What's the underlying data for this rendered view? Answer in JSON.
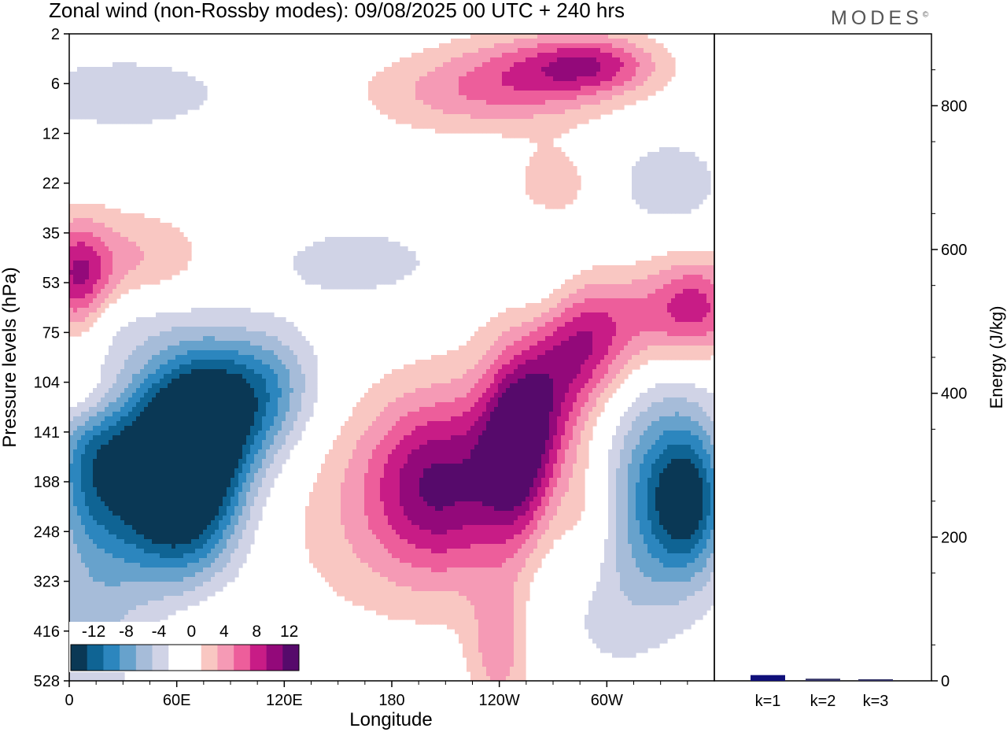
{
  "title": "Zonal wind (non-Rossby modes):  09/08/2025  00 UTC  + 240 hrs",
  "brand": "MODES",
  "brand_mark": "©",
  "colors": {
    "neg": [
      "#0a3855",
      "#0f6494",
      "#2c86be",
      "#67a2cc",
      "#a6bcd9",
      "#d0d3e6"
    ],
    "zero": "#ffffff",
    "pos": [
      "#f9c7c2",
      "#f59ab5",
      "#ed5e9b",
      "#c81c86",
      "#93097a",
      "#560a6b"
    ],
    "bar": "#10107a"
  },
  "chart_data": [
    {
      "type": "heatmap",
      "title": "Zonal wind (non-Rossby modes):  09/08/2025  00 UTC  + 240 hrs",
      "xlabel": "Longitude",
      "ylabel": "Pressure levels (hPa)",
      "x_ticks": [
        "0",
        "60E",
        "120E",
        "180",
        "120W",
        "60W"
      ],
      "y_ticks": [
        "2",
        "6",
        "12",
        "22",
        "35",
        "53",
        "75",
        "104",
        "141",
        "188",
        "248",
        "323",
        "416",
        "528"
      ],
      "colorbar": {
        "labels": [
          "-12",
          "-8",
          "-4",
          "0",
          "4",
          "8",
          "12"
        ],
        "levels": [
          -14,
          -12,
          -10,
          -8,
          -6,
          -4,
          -2,
          2,
          4,
          6,
          8,
          10,
          12,
          14
        ]
      },
      "features": [
        {
          "lon": 50,
          "level": 8.6,
          "lon_width": 22,
          "level_width": 1.3,
          "value": -12
        },
        {
          "lon": 72,
          "level": 8.5,
          "lon_width": 18,
          "level_width": 1.4,
          "value": -9
        },
        {
          "lon": 90,
          "level": 7.7,
          "lon_width": 24,
          "level_width": 1.0,
          "value": -8
        },
        {
          "lon": 12,
          "level": 8.6,
          "lon_width": 16,
          "level_width": 1.2,
          "value": -8
        },
        {
          "lon": 110,
          "level": 7.0,
          "lon_width": 22,
          "level_width": 0.8,
          "value": -5
        },
        {
          "lon": 60,
          "level": 10.0,
          "lon_width": 30,
          "level_width": 1.3,
          "value": -5
        },
        {
          "lon": 30,
          "level": 5.6,
          "lon_width": 30,
          "level_width": 0.6,
          "value": -3
        },
        {
          "lon": 160,
          "level": 4.6,
          "lon_width": 40,
          "level_width": 0.6,
          "value": -3
        },
        {
          "lon": 30,
          "level": 1.2,
          "lon_width": 40,
          "level_width": 0.5,
          "value": -4
        },
        {
          "lon": 330,
          "level": 9.0,
          "lon_width": 25,
          "level_width": 1.5,
          "value": -7
        },
        {
          "lon": 345,
          "level": 9.4,
          "lon_width": 14,
          "level_width": 1.0,
          "value": -9
        },
        {
          "lon": 335,
          "level": 3.0,
          "lon_width": 20,
          "level_width": 0.6,
          "value": -4
        },
        {
          "lon": 300,
          "level": 11.0,
          "lon_width": 30,
          "level_width": 1.5,
          "value": -3
        },
        {
          "lon": 265,
          "level": 5.4,
          "lon_width": 14,
          "level_width": 0.8,
          "value": -2.5
        },
        {
          "lon": 10,
          "level": 12.0,
          "lon_width": 20,
          "level_width": 1.5,
          "value": -4
        },
        {
          "lon": 5,
          "level": 5.0,
          "lon_width": 12,
          "level_width": 0.8,
          "value": 8
        },
        {
          "lon": 30,
          "level": 4.7,
          "lon_width": 35,
          "level_width": 0.8,
          "value": 5
        },
        {
          "lon": 10,
          "level": 7.3,
          "lon_width": 14,
          "level_width": 0.5,
          "value": 4
        },
        {
          "lon": 175,
          "level": 9.6,
          "lon_width": 50,
          "level_width": 1.6,
          "value": 3.5
        },
        {
          "lon": 200,
          "level": 9.0,
          "lon_width": 25,
          "level_width": 1.2,
          "value": 6
        },
        {
          "lon": 225,
          "level": 9.0,
          "lon_width": 30,
          "level_width": 1.4,
          "value": 5
        },
        {
          "lon": 250,
          "level": 8.5,
          "lon_width": 14,
          "level_width": 1.2,
          "value": 9
        },
        {
          "lon": 262,
          "level": 7.5,
          "lon_width": 20,
          "level_width": 1.0,
          "value": 7
        },
        {
          "lon": 285,
          "level": 6.4,
          "lon_width": 20,
          "level_width": 0.8,
          "value": 7
        },
        {
          "lon": 315,
          "level": 5.7,
          "lon_width": 40,
          "level_width": 0.7,
          "value": 5
        },
        {
          "lon": 350,
          "level": 5.4,
          "lon_width": 18,
          "level_width": 0.7,
          "value": 6
        },
        {
          "lon": 240,
          "level": 12.4,
          "lon_width": 12,
          "level_width": 1.0,
          "value": 5
        },
        {
          "lon": 290,
          "level": 9.8,
          "lon_width": 12,
          "level_width": 1.0,
          "value": 4
        },
        {
          "lon": 215,
          "level": 1.2,
          "lon_width": 40,
          "level_width": 0.6,
          "value": 4
        },
        {
          "lon": 265,
          "level": 0.8,
          "lon_width": 35,
          "level_width": 0.6,
          "value": 6
        },
        {
          "lon": 295,
          "level": 0.6,
          "lon_width": 25,
          "level_width": 0.4,
          "value": 6
        },
        {
          "lon": 270,
          "level": 3.0,
          "lon_width": 18,
          "level_width": 0.6,
          "value": 3
        },
        {
          "lon": 75,
          "level": 12.4,
          "lon_width": 20,
          "level_width": 1.5,
          "value": 2.5
        }
      ]
    },
    {
      "type": "bar",
      "ylabel": "Energy (J/kg)",
      "categories": [
        "k=1",
        "k=2",
        "k=3"
      ],
      "values": [
        8,
        3,
        2
      ],
      "ylim": [
        0,
        900
      ],
      "y_ticks": [
        "0",
        "200",
        "400",
        "600",
        "800"
      ]
    }
  ]
}
